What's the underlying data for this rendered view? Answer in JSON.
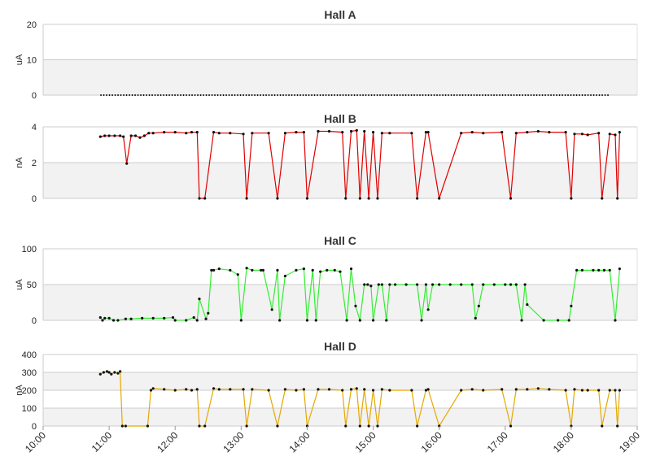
{
  "chart_data": [
    {
      "type": "line",
      "title": "Hall A",
      "ylabel": "uA",
      "ylim": [
        0,
        20
      ],
      "yticks": [
        0,
        10,
        20
      ],
      "color": "#222222",
      "series": [
        {
          "x": [
            "10:52",
            "18:35"
          ],
          "values": [
            0,
            0
          ],
          "style": "dotted-zero"
        }
      ]
    },
    {
      "type": "line",
      "title": "Hall B",
      "ylabel": "nA",
      "ylim": [
        0,
        4
      ],
      "yticks": [
        0,
        2,
        4
      ],
      "color": "#e00000",
      "series": [
        {
          "x": [
            "10:52",
            "10:56",
            "11:00",
            "11:05",
            "11:10",
            "11:13",
            "11:16",
            "11:20",
            "11:24",
            "11:28",
            "11:32",
            "11:36",
            "11:40",
            "11:50",
            "12:00",
            "12:10",
            "12:15",
            "12:20",
            "12:22",
            "12:27",
            "12:35",
            "12:40",
            "12:50",
            "13:02",
            "13:05",
            "13:10",
            "13:25",
            "13:33",
            "13:40",
            "13:50",
            "13:57",
            "14:00",
            "14:10",
            "14:20",
            "14:32",
            "14:35",
            "14:40",
            "14:45",
            "14:48",
            "14:52",
            "14:56",
            "15:00",
            "15:04",
            "15:08",
            "15:15",
            "15:35",
            "15:40",
            "15:48",
            "15:50",
            "16:00",
            "16:20",
            "16:30",
            "16:40",
            "16:57",
            "17:05",
            "17:10",
            "17:20",
            "17:30",
            "17:40",
            "17:55",
            "18:00",
            "18:03",
            "18:10",
            "18:15",
            "18:25",
            "18:28",
            "18:35",
            "18:40",
            "18:42",
            "18:44"
          ],
          "values": [
            3.45,
            3.5,
            3.5,
            3.5,
            3.5,
            3.45,
            1.95,
            3.5,
            3.5,
            3.4,
            3.5,
            3.65,
            3.65,
            3.7,
            3.7,
            3.65,
            3.7,
            3.7,
            0,
            0,
            3.7,
            3.65,
            3.65,
            3.6,
            0,
            3.65,
            3.65,
            0,
            3.65,
            3.7,
            3.7,
            0,
            3.75,
            3.75,
            3.7,
            0,
            3.75,
            3.8,
            0,
            3.75,
            0,
            3.7,
            0,
            3.65,
            3.65,
            3.65,
            0,
            3.7,
            3.7,
            0,
            3.65,
            3.7,
            3.65,
            3.7,
            0,
            3.65,
            3.7,
            3.75,
            3.7,
            3.7,
            0,
            3.6,
            3.6,
            3.55,
            3.65,
            0,
            3.6,
            3.55,
            0,
            3.7
          ]
        }
      ]
    },
    {
      "type": "line",
      "title": "Hall C",
      "ylabel": "uA",
      "ylim": [
        0,
        100
      ],
      "yticks": [
        0,
        50,
        100
      ],
      "color": "#33ee33",
      "series": [
        {
          "x": [
            "10:52",
            "10:54",
            "10:56",
            "11:00",
            "11:04",
            "11:08",
            "11:15",
            "11:20",
            "11:30",
            "11:40",
            "11:50",
            "11:58",
            "12:00",
            "12:10",
            "12:17",
            "12:20",
            "12:22",
            "12:28",
            "12:30",
            "12:33",
            "12:35",
            "12:40",
            "12:50",
            "12:57",
            "13:00",
            "13:05",
            "13:10",
            "13:18",
            "13:20",
            "13:28",
            "13:33",
            "13:35",
            "13:40",
            "13:50",
            "13:57",
            "14:00",
            "14:05",
            "14:08",
            "14:12",
            "14:18",
            "14:25",
            "14:30",
            "14:36",
            "14:40",
            "14:44",
            "14:48",
            "14:52",
            "14:55",
            "14:58",
            "15:00",
            "15:05",
            "15:08",
            "15:12",
            "15:15",
            "15:20",
            "15:30",
            "15:40",
            "15:44",
            "15:48",
            "15:50",
            "15:54",
            "16:00",
            "16:10",
            "16:20",
            "16:30",
            "16:33",
            "16:36",
            "16:40",
            "16:50",
            "17:00",
            "17:05",
            "17:10",
            "17:15",
            "17:18",
            "17:20",
            "17:35",
            "17:48",
            "17:58",
            "18:00",
            "18:05",
            "18:10",
            "18:20",
            "18:25",
            "18:30",
            "18:35",
            "18:40",
            "18:44"
          ],
          "values": [
            4,
            0,
            3,
            3,
            0,
            0,
            2,
            2,
            3,
            3,
            3,
            4,
            0,
            0,
            4,
            0,
            30,
            2,
            10,
            70,
            70,
            72,
            70,
            64,
            0,
            73,
            70,
            70,
            70,
            15,
            70,
            0,
            62,
            70,
            72,
            0,
            70,
            0,
            68,
            70,
            70,
            68,
            0,
            72,
            20,
            0,
            50,
            50,
            48,
            0,
            50,
            50,
            0,
            50,
            50,
            50,
            50,
            0,
            50,
            15,
            50,
            50,
            50,
            50,
            50,
            3,
            20,
            50,
            50,
            50,
            50,
            50,
            0,
            50,
            22,
            0,
            0,
            0,
            20,
            70,
            70,
            70,
            70,
            70,
            70,
            0,
            72
          ]
        }
      ]
    },
    {
      "type": "line",
      "title": "Hall D",
      "ylabel": "nA",
      "ylim": [
        0,
        400
      ],
      "yticks": [
        0,
        100,
        200,
        300,
        400
      ],
      "color": "#e6a800",
      "series": [
        {
          "x": [
            "10:52",
            "10:55",
            "10:58",
            "11:00",
            "11:02",
            "11:05",
            "11:08",
            "11:10",
            "11:12",
            "11:15",
            "11:35",
            "11:38",
            "11:40",
            "11:50",
            "12:00",
            "12:10",
            "12:15",
            "12:20",
            "12:22",
            "12:27",
            "12:35",
            "12:40",
            "12:50",
            "13:02",
            "13:05",
            "13:10",
            "13:25",
            "13:33",
            "13:40",
            "13:50",
            "13:57",
            "14:00",
            "14:10",
            "14:20",
            "14:32",
            "14:35",
            "14:40",
            "14:45",
            "14:48",
            "14:52",
            "14:56",
            "15:00",
            "15:04",
            "15:08",
            "15:15",
            "15:35",
            "15:40",
            "15:48",
            "15:50",
            "16:00",
            "16:20",
            "16:30",
            "16:40",
            "16:57",
            "17:05",
            "17:10",
            "17:20",
            "17:30",
            "17:40",
            "17:55",
            "18:00",
            "18:03",
            "18:10",
            "18:15",
            "18:25",
            "18:28",
            "18:35",
            "18:40",
            "18:42",
            "18:44"
          ],
          "values": [
            290,
            300,
            305,
            300,
            290,
            300,
            295,
            305,
            0,
            0,
            0,
            200,
            210,
            205,
            200,
            205,
            200,
            205,
            0,
            0,
            210,
            205,
            205,
            205,
            0,
            205,
            200,
            0,
            205,
            200,
            205,
            0,
            205,
            205,
            200,
            0,
            205,
            210,
            0,
            205,
            0,
            200,
            0,
            205,
            200,
            200,
            0,
            200,
            205,
            0,
            200,
            205,
            200,
            205,
            0,
            205,
            205,
            210,
            205,
            200,
            0,
            205,
            200,
            200,
            200,
            0,
            200,
            200,
            0,
            200
          ]
        }
      ]
    }
  ],
  "x_axis": {
    "ticks": [
      "10:00",
      "11:00",
      "12:00",
      "13:00",
      "14:00",
      "15:00",
      "16:00",
      "17:00",
      "18:00",
      "19:00"
    ]
  }
}
